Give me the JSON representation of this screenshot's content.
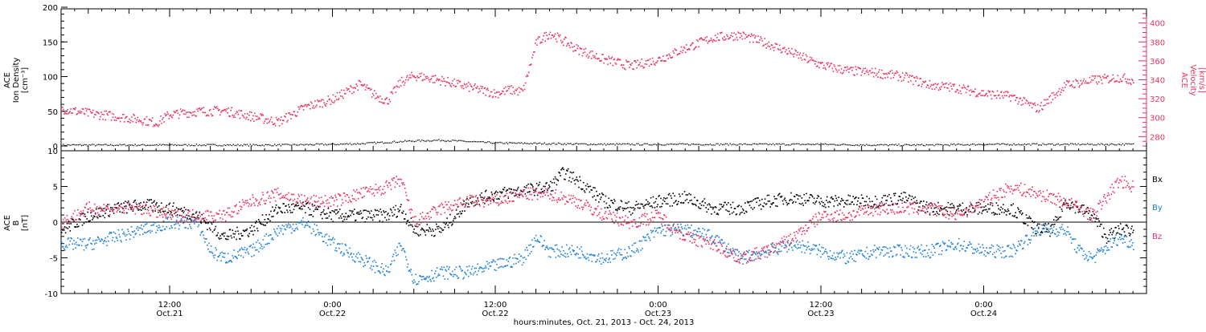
{
  "colors": {
    "black": "#000000",
    "pink": "#e8325e",
    "blue": "#1c7fd6"
  },
  "panels": {
    "top": {
      "ylabel_left": [
        "ACE",
        "Ion Density",
        "[cm⁻³]"
      ],
      "ylabel_right": [
        "ACE",
        "Velocity",
        "[km/s]"
      ]
    },
    "bottom": {
      "ylabel_left": [
        "ACE",
        "B",
        "[nT]"
      ]
    }
  },
  "legend": {
    "bx": "Bx",
    "by": "By",
    "bz": "Bz"
  },
  "xaxis": {
    "title": "hours:minutes, Oct. 21, 2013 - Oct. 24, 2013",
    "ticks": [
      {
        "time": "12:00",
        "date": "Oct.21"
      },
      {
        "time": "0:00",
        "date": "Oct.22"
      },
      {
        "time": "12:00",
        "date": "Oct.22"
      },
      {
        "time": "0:00",
        "date": "Oct.23"
      },
      {
        "time": "12:00",
        "date": "Oct.23"
      },
      {
        "time": "0:00",
        "date": "Oct.24"
      }
    ]
  },
  "chart_data": [
    {
      "type": "scatter",
      "panel": "top",
      "xlim_hours": [
        4,
        84
      ],
      "left_axis": {
        "label": "ACE Ion Density [cm⁻³]",
        "ylim": [
          0,
          200
        ],
        "ticks": [
          0,
          50,
          100,
          150,
          200
        ]
      },
      "right_axis": {
        "label": "ACE Velocity [km/s]",
        "ylim": [
          265,
          415
        ],
        "ticks": [
          280,
          300,
          320,
          340,
          360,
          380,
          400
        ]
      },
      "series": [
        {
          "axis": "left",
          "color": "#000000",
          "x": [
            4,
            10,
            16,
            20,
            24,
            26,
            28,
            30,
            32,
            36,
            40,
            44,
            48,
            52,
            56,
            60,
            64,
            68,
            72,
            76,
            80,
            83
          ],
          "y": [
            2,
            2,
            2,
            2,
            3,
            4,
            6,
            8,
            9,
            5,
            4,
            3,
            3,
            3,
            3,
            3,
            2,
            2,
            3,
            3,
            3,
            3
          ]
        },
        {
          "axis": "right",
          "color": "#e8325e",
          "x": [
            4,
            6,
            8,
            10,
            11,
            12,
            14,
            16,
            18,
            20,
            22,
            24,
            26,
            27,
            28,
            29,
            30,
            32,
            34,
            36,
            37,
            38,
            39,
            40,
            42,
            44,
            46,
            48,
            50,
            52,
            54,
            56,
            58,
            60,
            62,
            64,
            66,
            68,
            70,
            72,
            74,
            76,
            78,
            80,
            82,
            83
          ],
          "y": [
            310,
            305,
            302,
            298,
            295,
            304,
            307,
            308,
            302,
            296,
            312,
            320,
            336,
            325,
            318,
            338,
            345,
            340,
            333,
            326,
            330,
            328,
            380,
            390,
            373,
            362,
            355,
            362,
            374,
            385,
            388,
            379,
            368,
            356,
            350,
            348,
            344,
            335,
            332,
            326,
            323,
            310,
            335,
            340,
            343,
            340
          ]
        }
      ]
    },
    {
      "type": "scatter",
      "panel": "bottom",
      "xlim_hours": [
        4,
        84
      ],
      "ylabel": "ACE B [nT]",
      "ylim": [
        -10,
        10
      ],
      "yticks": [
        -10,
        -5,
        0,
        5,
        10
      ],
      "zero_line": true,
      "series": [
        {
          "name": "Bx",
          "color": "#000000",
          "x": [
            4,
            6,
            8,
            10,
            12,
            14,
            16,
            18,
            20,
            22,
            24,
            26,
            28,
            29,
            30,
            32,
            34,
            36,
            38,
            40,
            41,
            42,
            44,
            46,
            48,
            50,
            52,
            54,
            56,
            58,
            60,
            62,
            64,
            66,
            68,
            70,
            72,
            74,
            76,
            77,
            78,
            80,
            81,
            82,
            83
          ],
          "y": [
            -1,
            1,
            2,
            2.5,
            2,
            1,
            -2,
            -1,
            2,
            2,
            1,
            1,
            1,
            2,
            -1,
            -1,
            3,
            4,
            4.5,
            5,
            7,
            6,
            3,
            2,
            3,
            3.5,
            2,
            2,
            3,
            3.5,
            3,
            3,
            3,
            3.5,
            2,
            2,
            2,
            2,
            -1,
            -1,
            3,
            1,
            -2,
            -1,
            -1
          ]
        },
        {
          "name": "By",
          "color": "#1c7fd6",
          "x": [
            4,
            6,
            8,
            10,
            12,
            14,
            15,
            16,
            18,
            20,
            22,
            24,
            26,
            28,
            29,
            30,
            32,
            34,
            36,
            38,
            39,
            40,
            42,
            44,
            46,
            48,
            50,
            52,
            54,
            56,
            58,
            60,
            62,
            64,
            66,
            68,
            70,
            72,
            74,
            76,
            78,
            79,
            80,
            82,
            83
          ],
          "y": [
            -3,
            -3,
            -2,
            -1,
            0,
            0,
            -4,
            -5,
            -4,
            -1,
            0,
            -3,
            -5,
            -7,
            -3,
            -8,
            -7,
            -7,
            -6,
            -5,
            -2,
            -4,
            -4,
            -5,
            -4,
            -1,
            -1,
            -2,
            -5,
            -4,
            -3,
            -4,
            -5,
            -4,
            -4,
            -4,
            -3,
            -4,
            -4,
            -1,
            -1,
            -4,
            -5,
            -2,
            -3
          ]
        },
        {
          "name": "Bz",
          "color": "#e8325e",
          "x": [
            4,
            6,
            8,
            10,
            12,
            14,
            16,
            18,
            20,
            22,
            24,
            26,
            28,
            29,
            30,
            32,
            34,
            36,
            38,
            40,
            42,
            44,
            46,
            48,
            50,
            52,
            54,
            56,
            58,
            60,
            62,
            64,
            66,
            68,
            70,
            72,
            74,
            76,
            78,
            80,
            82,
            83
          ],
          "y": [
            0,
            2,
            2,
            2,
            1,
            1,
            1,
            3,
            4,
            3,
            3,
            4,
            5,
            6,
            0,
            2,
            3,
            3,
            4,
            4,
            3,
            1,
            0,
            1,
            -2,
            -3,
            -5,
            -4,
            -2,
            1,
            1,
            2,
            2,
            2,
            1,
            3,
            5,
            4,
            3,
            1,
            6,
            5
          ]
        }
      ]
    }
  ]
}
